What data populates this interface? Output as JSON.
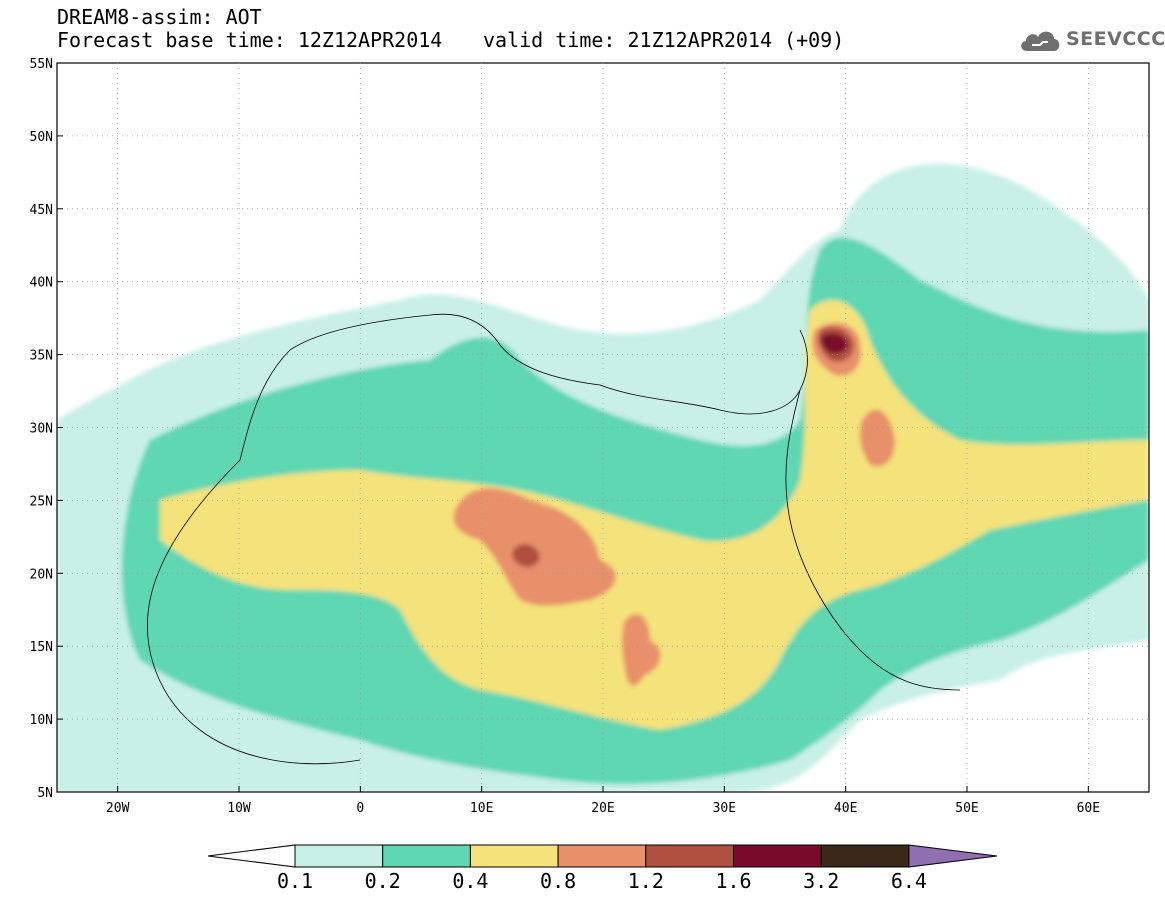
{
  "header": {
    "title": "DREAM8-assim: AOT",
    "base_time": "Forecast base time: 12Z12APR2014",
    "valid_time": "valid time: 21Z12APR2014 (+09)"
  },
  "logo": {
    "text": "SEEVCCC",
    "icon": "cloud-icon"
  },
  "map": {
    "lon_range": [
      -25,
      65
    ],
    "lat_range": [
      5,
      55
    ],
    "lat_ticks": [
      "5N",
      "10N",
      "15N",
      "20N",
      "25N",
      "30N",
      "35N",
      "40N",
      "45N",
      "50N",
      "55N"
    ],
    "lon_ticks": [
      "20W",
      "10W",
      "0",
      "10E",
      "20E",
      "30E",
      "40E",
      "50E",
      "60E"
    ],
    "grid": "dotted"
  },
  "colorbar": {
    "labels": [
      "0.1",
      "0.2",
      "0.4",
      "0.8",
      "1.2",
      "1.6",
      "3.2",
      "6.4"
    ],
    "colors": [
      "#ffffff",
      "#c8f0e6",
      "#5fd7b2",
      "#f4e27a",
      "#e8906a",
      "#b05040",
      "#7a0a2a",
      "#3a2818",
      "#8f6fb0"
    ]
  }
}
